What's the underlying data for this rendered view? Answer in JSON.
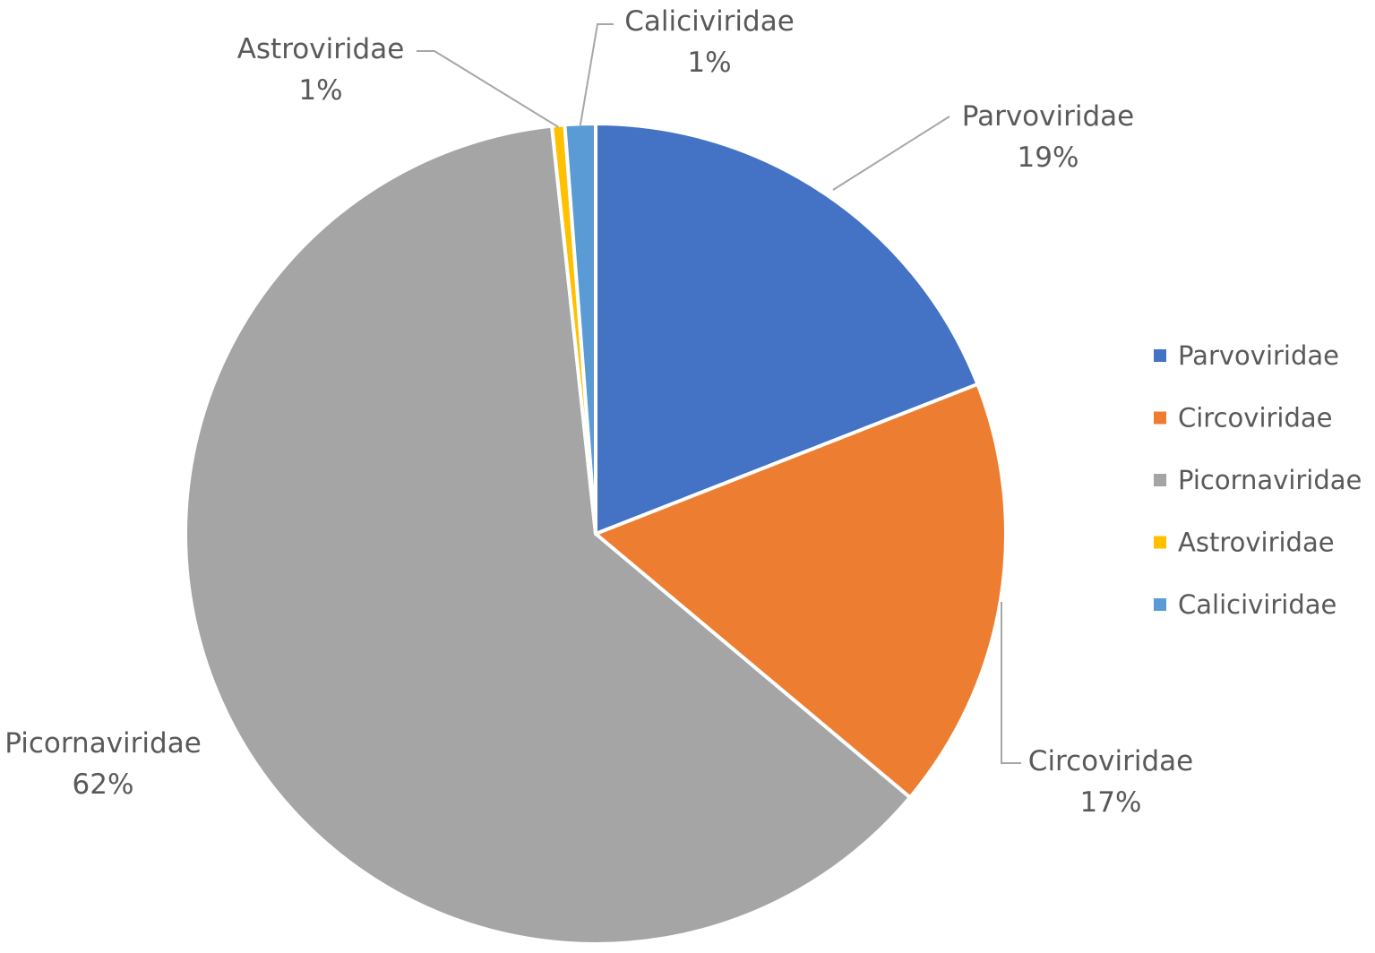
{
  "chart_data": {
    "type": "pie",
    "legend_position": "right",
    "slices": [
      {
        "name": "Parvoviridae",
        "value": 19,
        "label_value": "19%",
        "color": "#4472C4"
      },
      {
        "name": "Circoviridae",
        "value": 17,
        "label_value": "17%",
        "color": "#ED7D31"
      },
      {
        "name": "Picornaviridae",
        "value": 62,
        "label_value": "62%",
        "color": "#A5A5A5"
      },
      {
        "name": "Astroviridae",
        "value": 0.5,
        "label_value": "1%",
        "color": "#FFC000"
      },
      {
        "name": "Caliciviridae",
        "value": 1.2,
        "label_value": "1%",
        "color": "#5B9BD5"
      }
    ]
  }
}
